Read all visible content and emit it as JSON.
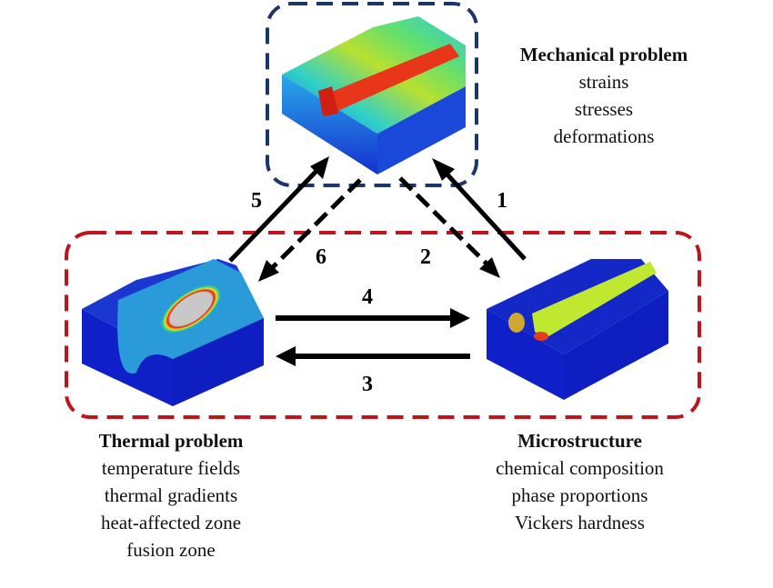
{
  "colors": {
    "mechanical_box": "#1b3768",
    "thermal_micro_box": "#c0141c",
    "arrow": "#000000"
  },
  "mechanical": {
    "title": "Mechanical problem",
    "items": [
      "strains",
      "stresses",
      "deformations"
    ]
  },
  "thermal": {
    "title": "Thermal problem",
    "items": [
      "temperature fields",
      "thermal gradients",
      "heat-affected zone",
      "fusion zone"
    ]
  },
  "microstructure": {
    "title": "Microstructure",
    "items": [
      "chemical composition",
      "phase proportions",
      "Vickers hardness"
    ]
  },
  "arrows": {
    "a1": "1",
    "a2": "2",
    "a3": "3",
    "a4": "4",
    "a5": "5",
    "a6": "6"
  }
}
